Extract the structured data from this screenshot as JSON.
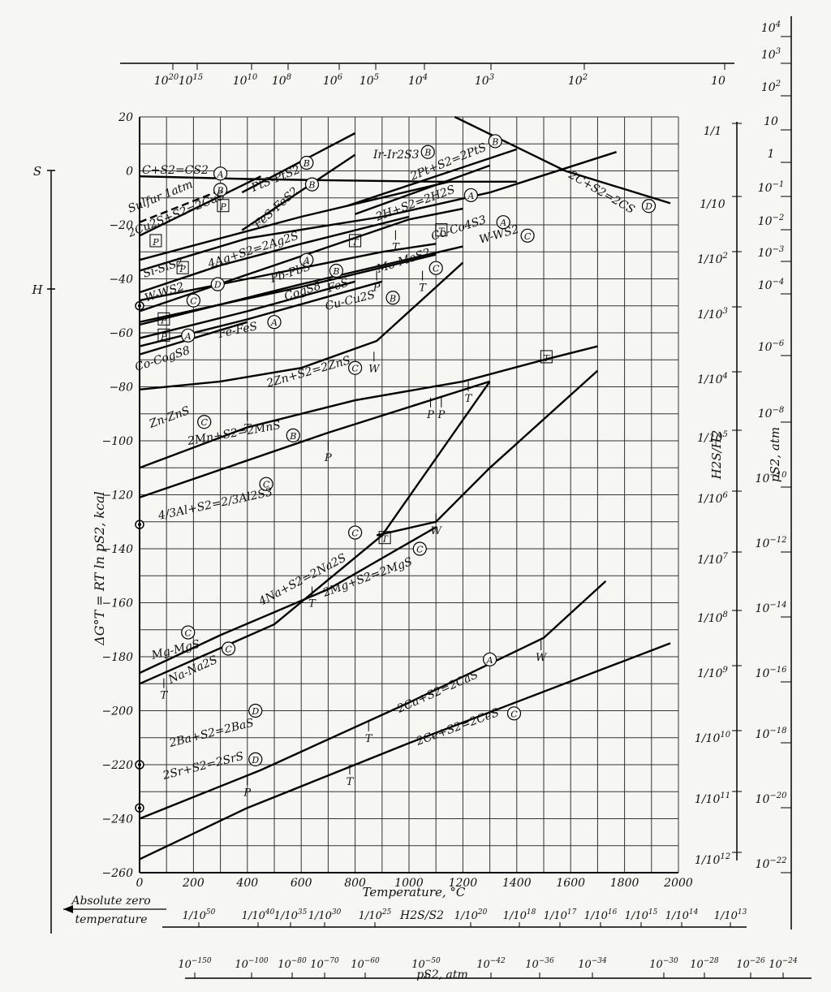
{
  "chart_data": {
    "type": "line",
    "title": "",
    "xlabel": "Temperature, °C",
    "ylabel": "ΔG°T = RT ln pS2, kcal",
    "xlim": [
      0,
      2000
    ],
    "ylim": [
      -260,
      20
    ],
    "x_ticks": [
      0,
      200,
      400,
      600,
      800,
      1000,
      1200,
      1400,
      1600,
      1800,
      2000
    ],
    "y_ticks": [
      20,
      0,
      -20,
      -40,
      -60,
      -80,
      -100,
      -120,
      -140,
      -160,
      -180,
      -200,
      -220,
      -240,
      -260
    ],
    "grid": true,
    "left_scale": {
      "labels": [
        "S",
        "H"
      ],
      "absolute_zero": [
        "Absolute zero",
        "temperature"
      ]
    },
    "series": [
      {
        "name": "C+S2=CS2 (A)",
        "x": [
          0,
          400,
          700,
          1100,
          1400
        ],
        "y": [
          -2,
          -3,
          -3.5,
          -4,
          -4
        ]
      },
      {
        "name": "Sulfur 1atm",
        "x": [
          0,
          280
        ],
        "y": [
          -19,
          -8
        ]
      },
      {
        "name": "2Cu2S+S2=2CuS (B)",
        "x": [
          0,
          450
        ],
        "y": [
          -24,
          -2
        ]
      },
      {
        "name": "PtS-PtS2 (B)",
        "x": [
          380,
          800
        ],
        "y": [
          -8,
          14
        ]
      },
      {
        "name": "FeS-FeS2 (B)",
        "x": [
          380,
          800
        ],
        "y": [
          -22,
          6
        ]
      },
      {
        "name": "Ir-Ir2S3 (B)",
        "x": [
          800,
          1300
        ],
        "y": [
          -16,
          2
        ]
      },
      {
        "name": "2Pt+S2=2PtS (B)",
        "x": [
          770,
          1400
        ],
        "y": [
          -13,
          8
        ]
      },
      {
        "name": "2H+S2=2H2S (A)",
        "x": [
          0,
          400,
          900,
          1300,
          1770
        ],
        "y": [
          -37,
          -25,
          -17,
          -8,
          7
        ]
      },
      {
        "name": "2C+S2=2CS (D)",
        "x": [
          1170,
          1580,
          1970
        ],
        "y": [
          20,
          0,
          -12
        ]
      },
      {
        "name": "Co-Co4S3 (A)",
        "x": [
          0,
          600,
          1150
        ],
        "y": [
          -33,
          -17,
          -4
        ]
      },
      {
        "name": "W-WS2 (C)",
        "x": [
          0,
          500,
          1000,
          1200
        ],
        "y": [
          -52,
          -35,
          -18,
          -14
        ]
      },
      {
        "name": "4Ag+S2=2Ag2S (A)",
        "x": [
          0,
          300,
          600,
          1000
        ],
        "y": [
          -45,
          -35,
          -27,
          -17
        ]
      },
      {
        "name": "Pb-PbS (B)",
        "x": [
          0,
          600,
          1200
        ],
        "y": [
          -57,
          -42,
          -28
        ]
      },
      {
        "name": "Mo-MoS2 (C)",
        "x": [
          0,
          600,
          1100
        ],
        "y": [
          -56,
          -43,
          -31
        ]
      },
      {
        "name": "Si-SiS2 (D)",
        "x": [
          0,
          400,
          900,
          1100
        ],
        "y": [
          -48,
          -40,
          -30,
          -27
        ]
      },
      {
        "name": "Cu-Cu2S (B)",
        "x": [
          0,
          400,
          800
        ],
        "y": [
          -62,
          -52,
          -41
        ]
      },
      {
        "name": "Fe-FeS (A)",
        "x": [
          0,
          400,
          900
        ],
        "y": [
          -65,
          -55,
          -41
        ]
      },
      {
        "name": "Co-Co9S8",
        "x": [
          0,
          400
        ],
        "y": [
          -68,
          -56
        ]
      },
      {
        "name": "2Zn+S2=2ZnS (C)",
        "x": [
          0,
          300,
          600,
          880,
          1200
        ],
        "y": [
          -81,
          -78,
          -73,
          -63,
          -34
        ]
      },
      {
        "name": "Zn-ZnS (C)",
        "x": [
          0,
          400,
          800,
          1200,
          1500,
          1700
        ],
        "y": [
          -110,
          -95,
          -85,
          -78,
          -70,
          -65
        ]
      },
      {
        "name": "2Mn+S2=2MnS (B)",
        "x": [
          0,
          700,
          1300
        ],
        "y": [
          -121,
          -97,
          -78
        ]
      },
      {
        "name": "4/3Al+S2=2/3Al2S3 (C)",
        "x": [
          880,
          1100,
          1300,
          1700
        ],
        "y": [
          -135,
          -130,
          -110,
          -74
        ]
      },
      {
        "name": "4Na+S2=2Na2S (C)",
        "x": [
          0,
          500,
          900,
          1300
        ],
        "y": [
          -190,
          -168,
          -135,
          -78
        ]
      },
      {
        "name": "2Mg+S2=2MgS (C)",
        "x": [
          0,
          300,
          700,
          1100
        ],
        "y": [
          -186,
          -172,
          -155,
          -132
        ]
      },
      {
        "name": "2Ca+S2=2CaS (A)",
        "x": [
          0,
          450,
          1000,
          1500,
          1730
        ],
        "y": [
          -240,
          -222,
          -197,
          -173,
          -152
        ]
      },
      {
        "name": "2Ce+S2=2CeS (C)",
        "x": [
          0,
          400,
          1000,
          1970
        ],
        "y": [
          -255,
          -236,
          -212,
          -175
        ]
      }
    ],
    "labels": [
      "C+S2=CS2",
      "Sulfur 1atm",
      "2Cu2S+S2=2CuS",
      "PtS-PtS2",
      "FeS-FeS2",
      "Ir-Ir2S3",
      "2Pt+S2=2PtS",
      "2H+S2=2H2S",
      "2C+S2=2CS",
      "Co-Co4S3",
      "W-WS2",
      "4Ag+S2=2Ag2S",
      "Pb-PbS",
      "Mo-MoS2",
      "Si-SiS2",
      "W-WS2",
      "CogS8",
      "FeS",
      "Cu-Cu2S",
      "Fe-FeS",
      "Co-CogS8",
      "2Zn+S2=2ZnS",
      "Zn-ZnS",
      "2Mn+S2=2MnS",
      "4/3Al+S2=2/3Al2S3",
      "4Na+S2=2Na2S",
      "2Mg+S2=2MgS",
      "Mg-MgS",
      "Na-Na2S",
      "2Ca+S2=2CaS",
      "2Ce+S2=2CeS",
      "2Ba+S2=2BaS",
      "2Sr+S2=2SrS"
    ],
    "phase_markers": [
      {
        "text": "P",
        "x": 400,
        "y": -227
      },
      {
        "text": "T",
        "x": 780,
        "y": -223
      },
      {
        "text": "T",
        "x": 850,
        "y": -207
      },
      {
        "text": "W",
        "x": 1490,
        "y": -177
      },
      {
        "text": "T",
        "x": 90,
        "y": -191
      },
      {
        "text": "T",
        "x": 640,
        "y": -157
      },
      {
        "text": "W",
        "x": 1100,
        "y": -130
      },
      {
        "text": "P",
        "x": 700,
        "y": -103
      },
      {
        "text": "P",
        "x": 1080,
        "y": -87
      },
      {
        "text": "P",
        "x": 1120,
        "y": -87
      },
      {
        "text": "T",
        "x": 1220,
        "y": -81
      },
      {
        "text": "T",
        "x": 400,
        "y": -92
      },
      {
        "text": "W",
        "x": 870,
        "y": -70
      },
      {
        "text": "T",
        "x": 1050,
        "y": -40
      },
      {
        "text": "P",
        "x": 880,
        "y": -40
      },
      {
        "text": "T",
        "x": 950,
        "y": -25
      }
    ],
    "boxed_markers": [
      {
        "text": "P",
        "x": 60,
        "y": -26
      },
      {
        "text": "P",
        "x": 310,
        "y": -13
      },
      {
        "text": "P",
        "x": 160,
        "y": -36
      },
      {
        "text": "P",
        "x": 90,
        "y": -55
      },
      {
        "text": "P",
        "x": 90,
        "y": -61
      },
      {
        "text": "T",
        "x": 800,
        "y": -26
      },
      {
        "text": "T",
        "x": 1120,
        "y": -22
      },
      {
        "text": "T",
        "x": 910,
        "y": -136
      },
      {
        "text": "T",
        "x": 1510,
        "y": -69
      }
    ],
    "circled_letters": [
      {
        "text": "A",
        "x": 300,
        "y": -1
      },
      {
        "text": "B",
        "x": 620,
        "y": 3
      },
      {
        "text": "B",
        "x": 300,
        "y": -7
      },
      {
        "text": "B",
        "x": 640,
        "y": -5
      },
      {
        "text": "B",
        "x": 1070,
        "y": 7
      },
      {
        "text": "B",
        "x": 1320,
        "y": 11
      },
      {
        "text": "A",
        "x": 1230,
        "y": -9
      },
      {
        "text": "A",
        "x": 1350,
        "y": -19
      },
      {
        "text": "C",
        "x": 1440,
        "y": -24
      },
      {
        "text": "D",
        "x": 1890,
        "y": -13
      },
      {
        "text": "A",
        "x": 620,
        "y": -33
      },
      {
        "text": "B",
        "x": 730,
        "y": -37
      },
      {
        "text": "C",
        "x": 1100,
        "y": -36
      },
      {
        "text": "D",
        "x": 290,
        "y": -42
      },
      {
        "text": "C",
        "x": 200,
        "y": -48
      },
      {
        "text": "B",
        "x": 940,
        "y": -47
      },
      {
        "text": "A",
        "x": 500,
        "y": -56
      },
      {
        "text": "A",
        "x": 180,
        "y": -61
      },
      {
        "text": "C",
        "x": 800,
        "y": -73
      },
      {
        "text": "C",
        "x": 240,
        "y": -93
      },
      {
        "text": "B",
        "x": 570,
        "y": -98
      },
      {
        "text": "C",
        "x": 470,
        "y": -116
      },
      {
        "text": "C",
        "x": 800,
        "y": -134
      },
      {
        "text": "C",
        "x": 1040,
        "y": -140
      },
      {
        "text": "C",
        "x": 180,
        "y": -171
      },
      {
        "text": "C",
        "x": 330,
        "y": -177
      },
      {
        "text": "A",
        "x": 1300,
        "y": -181
      },
      {
        "text": "C",
        "x": 1390,
        "y": -201
      },
      {
        "text": "D",
        "x": 430,
        "y": -200
      },
      {
        "text": "D",
        "x": 430,
        "y": -218
      }
    ],
    "reference_points": [
      {
        "x": 0,
        "y": -50
      },
      {
        "x": 0,
        "y": -131
      },
      {
        "x": 0,
        "y": -220
      },
      {
        "x": 0,
        "y": -236
      }
    ],
    "top_scale": {
      "label": "",
      "ticks": [
        "10^20",
        "10^15",
        "10^10",
        "10^8",
        "10^6",
        "10^5",
        "10^4",
        "10^3",
        "10^2",
        "10"
      ]
    },
    "right_scale_h2s_h2": {
      "label": "H2S/H2",
      "ticks": [
        "1/1",
        "1/10",
        "1/10^2",
        "1/10^3",
        "1/10^4",
        "1/10^5",
        "1/10^6",
        "1/10^7",
        "1/10^8",
        "1/10^9",
        "1/10^10",
        "1/10^11",
        "1/10^12"
      ]
    },
    "right_scale_ps2": {
      "label": "pS2, atm",
      "ticks": [
        "10^4",
        "10^3",
        "10^2",
        "10",
        "1",
        "10^-1",
        "10^-2",
        "10^-3",
        "10^-4",
        "10^-6",
        "10^-8",
        "10^-10",
        "10^-12",
        "10^-14",
        "10^-16",
        "10^-18",
        "10^-20",
        "10^-22"
      ]
    },
    "bottom_scale_h2s_s2": {
      "label": "H2S/S2",
      "ticks": [
        "1/10^50",
        "1/10^40",
        "1/10^35",
        "1/10^30",
        "1/10^25",
        "1/10^20",
        "1/10^18",
        "1/10^17",
        "1/10^16",
        "1/10^15",
        "1/10^14",
        "1/10^13"
      ]
    },
    "bottom_scale_ps2": {
      "label": "pS2, atm",
      "ticks": [
        "10^-150",
        "10^-100",
        "10^-80",
        "10^-70",
        "10^-60",
        "10^-50",
        "10^-42",
        "10^-36",
        "10^-34",
        "10^-30",
        "10^-28",
        "10^-26",
        "10^-24"
      ]
    }
  }
}
